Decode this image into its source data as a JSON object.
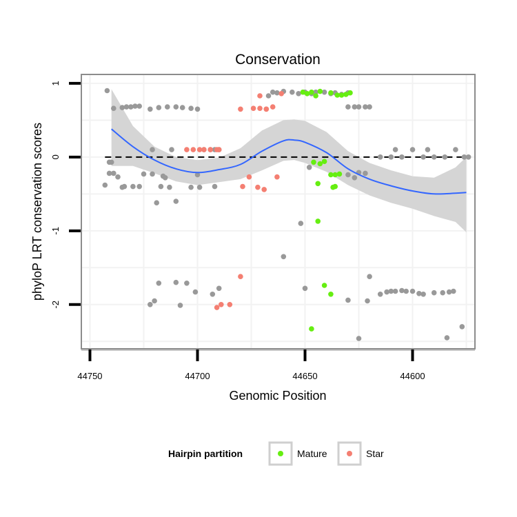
{
  "chart_data": {
    "type": "scatter",
    "title": "Conservation",
    "xlabel": "Genomic Position",
    "ylabel": "phyloP LRT conservation scores",
    "x_reversed": true,
    "xlim": [
      44754,
      44571
    ],
    "ylim": [
      -2.6,
      1.12
    ],
    "xticks": [
      44750,
      44700,
      44650,
      44600
    ],
    "xtick_labels": [
      "44750",
      "44700",
      "44650",
      "44600"
    ],
    "yticks": [
      1,
      0,
      -1,
      -2
    ],
    "ytick_labels": [
      "1",
      "0",
      "-1",
      "-2"
    ],
    "reference_line": {
      "y": 0,
      "style": "dashed"
    },
    "colors": {
      "other": "#999999",
      "mature": "#66ee11",
      "star": "#f47f72",
      "smooth": "#3366ff",
      "ribbon": "#d3d3d3",
      "panel_border": "#8c8c8c",
      "grid": "#f2f2f2"
    },
    "legend": {
      "title": "Hairpin partition",
      "position": "bottom",
      "entries": [
        {
          "label": "Mature",
          "series": "mature"
        },
        {
          "label": "Star",
          "series": "star"
        }
      ]
    },
    "smooth": {
      "x": [
        44740,
        44730,
        44720,
        44710,
        44700,
        44690,
        44680,
        44670,
        44660,
        44655,
        44650,
        44640,
        44630,
        44620,
        44610,
        44600,
        44590,
        44580,
        44575
      ],
      "y": [
        0.38,
        0.14,
        -0.04,
        -0.16,
        -0.21,
        -0.17,
        -0.1,
        0.08,
        0.22,
        0.23,
        0.2,
        0.06,
        -0.16,
        -0.3,
        -0.39,
        -0.46,
        -0.5,
        -0.49,
        -0.48
      ],
      "upper": [
        0.92,
        0.42,
        0.14,
        0.0,
        -0.04,
        -0.01,
        0.12,
        0.36,
        0.5,
        0.51,
        0.49,
        0.34,
        0.08,
        -0.08,
        -0.18,
        -0.26,
        -0.28,
        -0.14,
        0.0
      ],
      "lower": [
        -0.12,
        -0.12,
        -0.22,
        -0.33,
        -0.38,
        -0.34,
        -0.3,
        -0.18,
        -0.05,
        -0.04,
        -0.08,
        -0.2,
        -0.38,
        -0.52,
        -0.62,
        -0.7,
        -0.8,
        -0.88,
        -1.02
      ]
    },
    "series": [
      {
        "name": "other",
        "x": [
          44742,
          44739,
          44735,
          44733,
          44731,
          44729,
          44727,
          44722,
          44718,
          44714,
          44710,
          44707,
          44703,
          44700,
          44697,
          44694,
          44692,
          44741,
          44740,
          44739,
          44737,
          44735,
          44730,
          44725,
          44721,
          44717,
          44715,
          44710,
          44703,
          44700,
          44743,
          44741,
          44734,
          44727,
          44719,
          44716,
          44713,
          44699,
          44692,
          44690,
          44667,
          44663,
          44660,
          44656,
          44653,
          44650,
          44647,
          44645,
          44641,
          44638,
          44636,
          44633,
          44630,
          44625,
          44622,
          44620,
          44648,
          44660,
          44652,
          44630,
          44627,
          44625,
          44622,
          44615,
          44610,
          44605,
          44600,
          44595,
          44590,
          44585,
          44580,
          44576,
          44574,
          44630,
          44627,
          44722,
          44720,
          44718,
          44710,
          44708,
          44705,
          44701,
          44693,
          44690,
          44665,
          44650,
          44630,
          44620,
          44621,
          44615,
          44612,
          44610,
          44608,
          44605,
          44603,
          44600,
          44597,
          44595,
          44590,
          44586,
          44583,
          44581,
          44577,
          44584,
          44625,
          44721,
          44712,
          44608,
          44593
        ],
        "y": [
          0.9,
          0.66,
          0.67,
          0.68,
          0.68,
          0.69,
          0.69,
          0.65,
          0.67,
          0.68,
          0.68,
          0.67,
          0.66,
          0.65,
          0.1,
          0.1,
          0.1,
          -0.22,
          -0.07,
          -0.22,
          -0.27,
          -0.41,
          -0.4,
          -0.23,
          -0.23,
          -0.4,
          -0.28,
          -0.6,
          -0.41,
          -0.24,
          -0.38,
          -0.07,
          -0.4,
          -0.4,
          -0.62,
          -0.26,
          -0.41,
          -0.41,
          -0.4,
          0.1,
          0.83,
          0.87,
          0.89,
          0.88,
          0.86,
          0.88,
          0.86,
          0.88,
          0.88,
          0.86,
          0.87,
          0.85,
          0.87,
          0.68,
          0.68,
          0.68,
          -0.14,
          -1.35,
          -0.9,
          -0.24,
          -0.28,
          -0.21,
          -0.22,
          0.0,
          0.0,
          0.0,
          0.1,
          0.0,
          0.0,
          0.0,
          0.1,
          0.0,
          0.0,
          0.68,
          0.68,
          -2.0,
          -1.95,
          -1.71,
          -1.7,
          -2.01,
          -1.71,
          -1.83,
          -1.86,
          -1.78,
          0.88,
          -1.78,
          -1.94,
          -1.62,
          -1.95,
          -1.86,
          -1.83,
          -1.82,
          -1.82,
          -1.81,
          -1.82,
          -1.82,
          -1.85,
          -1.86,
          -1.84,
          -1.84,
          -1.83,
          -1.82,
          -2.3,
          -2.45,
          -2.46,
          0.1,
          0.1,
          0.1,
          0.1
        ]
      },
      {
        "name": "mature",
        "x": [
          44651,
          44649,
          44647,
          44645,
          44643,
          44638,
          44635,
          44633,
          44631,
          44629,
          44646,
          44643,
          44641,
          44638,
          44636,
          44634,
          44647,
          44641,
          44638,
          44644,
          44637,
          44644,
          44636
        ],
        "y": [
          0.88,
          0.86,
          0.88,
          0.83,
          0.89,
          0.87,
          0.84,
          0.84,
          0.85,
          0.87,
          -0.07,
          -0.09,
          -0.06,
          -0.24,
          -0.4,
          -0.23,
          -2.33,
          -1.74,
          -1.86,
          -0.36,
          -0.41,
          -0.87,
          -0.24
        ],
        "n": 23
      },
      {
        "name": "star",
        "x": [
          44705,
          44702,
          44699,
          44697,
          44694,
          44691,
          44690,
          44680,
          44674,
          44671,
          44668,
          44679,
          44676,
          44672,
          44669,
          44663,
          44671,
          44668,
          44665,
          44661,
          44680,
          44685,
          44689,
          44691
        ],
        "y": [
          0.1,
          0.1,
          0.1,
          0.1,
          0.1,
          0.1,
          0.1,
          0.65,
          0.66,
          0.66,
          0.65,
          -0.4,
          -0.27,
          -0.41,
          -0.44,
          -0.27,
          0.83,
          0.65,
          0.68,
          0.86,
          -1.62,
          -2.0,
          -2.0,
          -2.04
        ]
      }
    ]
  }
}
